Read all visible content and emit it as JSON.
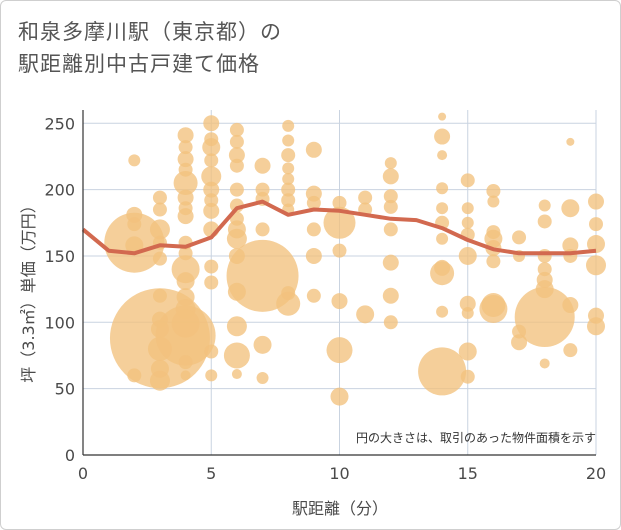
{
  "chart_data": {
    "type": "scatter",
    "title_line1": "和泉多摩川駅（東京都）の",
    "title_line2": "駅距離別中古戸建て価格",
    "xlabel": "駅距離（分）",
    "ylabel": "坪（3.3㎡）単価（万円）",
    "xlim": [
      0,
      20
    ],
    "ylim": [
      0,
      260
    ],
    "xticks": [
      0,
      5,
      10,
      15,
      20
    ],
    "yticks": [
      0,
      50,
      100,
      150,
      200,
      250
    ],
    "note": "円の大きさは、取引のあった物件面積を示す",
    "grid": true,
    "bubble_color": "#f2c17d",
    "line_color": "#d2694f",
    "trend": {
      "x": [
        0,
        1,
        2,
        3,
        4,
        5,
        6,
        7,
        8,
        9,
        10,
        11,
        12,
        13,
        14,
        15,
        16,
        17,
        18,
        19,
        20
      ],
      "y": [
        170,
        154,
        152,
        158,
        157,
        164,
        186,
        191,
        181,
        185,
        184,
        181,
        178,
        177,
        171,
        162,
        155,
        152,
        152,
        152,
        154
      ]
    },
    "points": [
      {
        "x": 2,
        "y": 222,
        "s": 6
      },
      {
        "x": 2,
        "y": 181,
        "s": 8
      },
      {
        "x": 2,
        "y": 174,
        "s": 7
      },
      {
        "x": 2,
        "y": 160,
        "s": 30
      },
      {
        "x": 2,
        "y": 158,
        "s": 9
      },
      {
        "x": 2,
        "y": 60,
        "s": 7
      },
      {
        "x": 3,
        "y": 194,
        "s": 7
      },
      {
        "x": 3,
        "y": 185,
        "s": 7
      },
      {
        "x": 3,
        "y": 170,
        "s": 10
      },
      {
        "x": 3,
        "y": 160,
        "s": 7
      },
      {
        "x": 3,
        "y": 148,
        "s": 7
      },
      {
        "x": 3,
        "y": 120,
        "s": 7
      },
      {
        "x": 3,
        "y": 102,
        "s": 8
      },
      {
        "x": 3,
        "y": 95,
        "s": 9
      },
      {
        "x": 3,
        "y": 88,
        "s": 50
      },
      {
        "x": 3,
        "y": 80,
        "s": 12
      },
      {
        "x": 3,
        "y": 65,
        "s": 9
      },
      {
        "x": 3,
        "y": 56,
        "s": 10
      },
      {
        "x": 4,
        "y": 241,
        "s": 8
      },
      {
        "x": 4,
        "y": 232,
        "s": 7
      },
      {
        "x": 4,
        "y": 223,
        "s": 8
      },
      {
        "x": 4,
        "y": 215,
        "s": 7
      },
      {
        "x": 4,
        "y": 205,
        "s": 12
      },
      {
        "x": 4,
        "y": 194,
        "s": 8
      },
      {
        "x": 4,
        "y": 186,
        "s": 7
      },
      {
        "x": 4,
        "y": 180,
        "s": 8
      },
      {
        "x": 4,
        "y": 160,
        "s": 7
      },
      {
        "x": 4,
        "y": 152,
        "s": 7
      },
      {
        "x": 4,
        "y": 140,
        "s": 14
      },
      {
        "x": 4,
        "y": 131,
        "s": 9
      },
      {
        "x": 4,
        "y": 119,
        "s": 9
      },
      {
        "x": 4,
        "y": 110,
        "s": 10
      },
      {
        "x": 4,
        "y": 99,
        "s": 14
      },
      {
        "x": 4,
        "y": 90,
        "s": 30
      },
      {
        "x": 4,
        "y": 70,
        "s": 7
      },
      {
        "x": 4,
        "y": 60,
        "s": 5
      },
      {
        "x": 5,
        "y": 250,
        "s": 8
      },
      {
        "x": 5,
        "y": 238,
        "s": 7
      },
      {
        "x": 5,
        "y": 232,
        "s": 9
      },
      {
        "x": 5,
        "y": 222,
        "s": 7
      },
      {
        "x": 5,
        "y": 210,
        "s": 10
      },
      {
        "x": 5,
        "y": 200,
        "s": 8
      },
      {
        "x": 5,
        "y": 192,
        "s": 7
      },
      {
        "x": 5,
        "y": 184,
        "s": 8
      },
      {
        "x": 5,
        "y": 170,
        "s": 8
      },
      {
        "x": 5,
        "y": 142,
        "s": 7
      },
      {
        "x": 5,
        "y": 130,
        "s": 7
      },
      {
        "x": 5,
        "y": 78,
        "s": 7
      },
      {
        "x": 5,
        "y": 60,
        "s": 6
      },
      {
        "x": 6,
        "y": 245,
        "s": 7
      },
      {
        "x": 6,
        "y": 236,
        "s": 7
      },
      {
        "x": 6,
        "y": 226,
        "s": 8
      },
      {
        "x": 6,
        "y": 218,
        "s": 7
      },
      {
        "x": 6,
        "y": 200,
        "s": 7
      },
      {
        "x": 6,
        "y": 188,
        "s": 7
      },
      {
        "x": 6,
        "y": 178,
        "s": 7
      },
      {
        "x": 6,
        "y": 170,
        "s": 9
      },
      {
        "x": 6,
        "y": 163,
        "s": 10
      },
      {
        "x": 6,
        "y": 150,
        "s": 8
      },
      {
        "x": 6,
        "y": 123,
        "s": 9
      },
      {
        "x": 6,
        "y": 97,
        "s": 10
      },
      {
        "x": 6,
        "y": 75,
        "s": 13
      },
      {
        "x": 6,
        "y": 61,
        "s": 5
      },
      {
        "x": 7,
        "y": 218,
        "s": 8
      },
      {
        "x": 7,
        "y": 200,
        "s": 7
      },
      {
        "x": 7,
        "y": 193,
        "s": 7
      },
      {
        "x": 7,
        "y": 170,
        "s": 7
      },
      {
        "x": 7,
        "y": 135,
        "s": 36
      },
      {
        "x": 7,
        "y": 83,
        "s": 9
      },
      {
        "x": 7,
        "y": 58,
        "s": 6
      },
      {
        "x": 8,
        "y": 248,
        "s": 6
      },
      {
        "x": 8,
        "y": 237,
        "s": 6
      },
      {
        "x": 8,
        "y": 226,
        "s": 7
      },
      {
        "x": 8,
        "y": 216,
        "s": 6
      },
      {
        "x": 8,
        "y": 208,
        "s": 6
      },
      {
        "x": 8,
        "y": 200,
        "s": 7
      },
      {
        "x": 8,
        "y": 192,
        "s": 7
      },
      {
        "x": 8,
        "y": 185,
        "s": 6
      },
      {
        "x": 8,
        "y": 122,
        "s": 7
      },
      {
        "x": 8,
        "y": 114,
        "s": 12
      },
      {
        "x": 9,
        "y": 230,
        "s": 8
      },
      {
        "x": 9,
        "y": 197,
        "s": 8
      },
      {
        "x": 9,
        "y": 190,
        "s": 7
      },
      {
        "x": 9,
        "y": 170,
        "s": 7
      },
      {
        "x": 9,
        "y": 150,
        "s": 8
      },
      {
        "x": 9,
        "y": 120,
        "s": 7
      },
      {
        "x": 10,
        "y": 190,
        "s": 7
      },
      {
        "x": 10,
        "y": 175,
        "s": 16
      },
      {
        "x": 10,
        "y": 154,
        "s": 7
      },
      {
        "x": 10,
        "y": 116,
        "s": 8
      },
      {
        "x": 10,
        "y": 79,
        "s": 13
      },
      {
        "x": 10,
        "y": 44,
        "s": 9
      },
      {
        "x": 11,
        "y": 194,
        "s": 7
      },
      {
        "x": 11,
        "y": 185,
        "s": 7
      },
      {
        "x": 11,
        "y": 106,
        "s": 9
      },
      {
        "x": 12,
        "y": 220,
        "s": 6
      },
      {
        "x": 12,
        "y": 210,
        "s": 8
      },
      {
        "x": 12,
        "y": 195,
        "s": 7
      },
      {
        "x": 12,
        "y": 187,
        "s": 7
      },
      {
        "x": 12,
        "y": 170,
        "s": 7
      },
      {
        "x": 12,
        "y": 145,
        "s": 8
      },
      {
        "x": 12,
        "y": 120,
        "s": 8
      },
      {
        "x": 12,
        "y": 100,
        "s": 7
      },
      {
        "x": 14,
        "y": 255,
        "s": 4
      },
      {
        "x": 14,
        "y": 240,
        "s": 8
      },
      {
        "x": 14,
        "y": 226,
        "s": 5
      },
      {
        "x": 14,
        "y": 201,
        "s": 6
      },
      {
        "x": 14,
        "y": 186,
        "s": 6
      },
      {
        "x": 14,
        "y": 175,
        "s": 7
      },
      {
        "x": 14,
        "y": 163,
        "s": 6
      },
      {
        "x": 14,
        "y": 141,
        "s": 8
      },
      {
        "x": 14,
        "y": 137,
        "s": 12
      },
      {
        "x": 14,
        "y": 108,
        "s": 6
      },
      {
        "x": 14,
        "y": 63,
        "s": 24
      },
      {
        "x": 15,
        "y": 207,
        "s": 7
      },
      {
        "x": 15,
        "y": 186,
        "s": 6
      },
      {
        "x": 15,
        "y": 175,
        "s": 6
      },
      {
        "x": 15,
        "y": 166,
        "s": 7
      },
      {
        "x": 15,
        "y": 150,
        "s": 9
      },
      {
        "x": 15,
        "y": 114,
        "s": 8
      },
      {
        "x": 15,
        "y": 107,
        "s": 6
      },
      {
        "x": 15,
        "y": 78,
        "s": 9
      },
      {
        "x": 15,
        "y": 59,
        "s": 7
      },
      {
        "x": 16,
        "y": 199,
        "s": 7
      },
      {
        "x": 16,
        "y": 191,
        "s": 6
      },
      {
        "x": 16,
        "y": 168,
        "s": 7
      },
      {
        "x": 16,
        "y": 163,
        "s": 9
      },
      {
        "x": 16,
        "y": 156,
        "s": 8
      },
      {
        "x": 16,
        "y": 146,
        "s": 7
      },
      {
        "x": 16,
        "y": 113,
        "s": 12
      },
      {
        "x": 16,
        "y": 110,
        "s": 14
      },
      {
        "x": 17,
        "y": 164,
        "s": 7
      },
      {
        "x": 17,
        "y": 150,
        "s": 6
      },
      {
        "x": 17,
        "y": 93,
        "s": 7
      },
      {
        "x": 17,
        "y": 85,
        "s": 8
      },
      {
        "x": 18,
        "y": 188,
        "s": 6
      },
      {
        "x": 18,
        "y": 176,
        "s": 7
      },
      {
        "x": 18,
        "y": 150,
        "s": 7
      },
      {
        "x": 18,
        "y": 140,
        "s": 7
      },
      {
        "x": 18,
        "y": 132,
        "s": 8
      },
      {
        "x": 18,
        "y": 125,
        "s": 9
      },
      {
        "x": 18,
        "y": 104,
        "s": 30
      },
      {
        "x": 18,
        "y": 69,
        "s": 5
      },
      {
        "x": 19,
        "y": 236,
        "s": 4
      },
      {
        "x": 19,
        "y": 186,
        "s": 9
      },
      {
        "x": 19,
        "y": 158,
        "s": 8
      },
      {
        "x": 19,
        "y": 150,
        "s": 7
      },
      {
        "x": 19,
        "y": 113,
        "s": 8
      },
      {
        "x": 19,
        "y": 79,
        "s": 7
      },
      {
        "x": 20,
        "y": 191,
        "s": 8
      },
      {
        "x": 20,
        "y": 174,
        "s": 7
      },
      {
        "x": 20,
        "y": 159,
        "s": 9
      },
      {
        "x": 20,
        "y": 143,
        "s": 10
      },
      {
        "x": 20,
        "y": 105,
        "s": 8
      },
      {
        "x": 20,
        "y": 97,
        "s": 9
      }
    ]
  }
}
